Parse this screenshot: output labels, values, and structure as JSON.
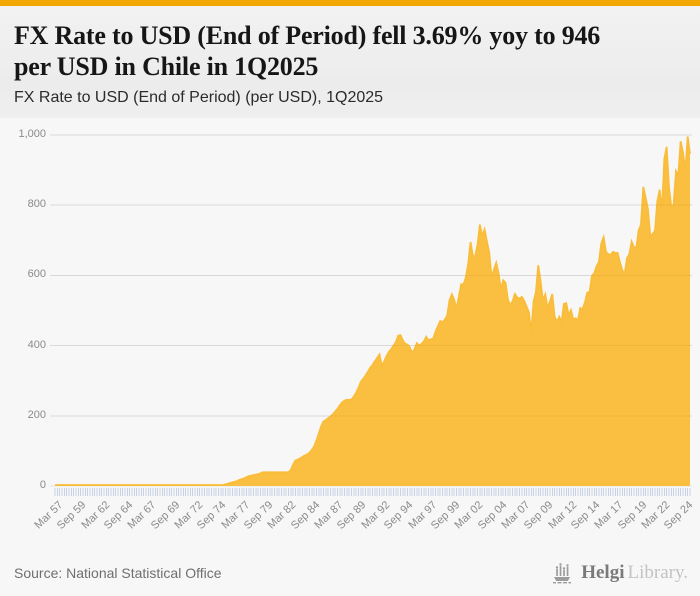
{
  "header": {
    "title_line1": "FX Rate to USD (End of Period) fell 3.69% yoy to 946",
    "title_line2": "per USD in Chile in 1Q2025",
    "subtitle": "FX Rate to USD (End of Period) (per USD), 1Q2025",
    "accent_color": "#F2A702"
  },
  "footer": {
    "source": "Source: National Statistical Office",
    "logo_icon": "bar-chart-ship-icon",
    "logo_primary": "Helgi",
    "logo_secondary": "Library."
  },
  "chart_data": {
    "type": "area",
    "title": "FX Rate to USD (End of Period) (per USD), 1Q2025",
    "frequency": "quarterly",
    "x_start": "1957Q1",
    "x_end": "2025Q1",
    "latest_value": 946,
    "latest_period": "1Q2025",
    "yoy_change_pct": -3.69,
    "ylim": [
      0,
      1000
    ],
    "yticks": [
      0,
      200,
      400,
      600,
      800,
      1000
    ],
    "ytick_labels": [
      "0",
      "200",
      "400",
      "600",
      "800",
      "1,000"
    ],
    "xtick_step_quarters": 10,
    "xtick_labels": [
      "Mar 57",
      "Sep 59",
      "Mar 62",
      "Sep 64",
      "Mar 67",
      "Sep 69",
      "Mar 72",
      "Sep 74",
      "Mar 77",
      "Sep 79",
      "Mar 82",
      "Sep 84",
      "Mar 87",
      "Sep 89",
      "Mar 92",
      "Sep 94",
      "Mar 97",
      "Sep 99",
      "Mar 02",
      "Sep 04",
      "Mar 07",
      "Sep 09",
      "Mar 12",
      "Sep 14",
      "Mar 17",
      "Sep 19",
      "Mar 22",
      "Sep 24"
    ],
    "grid": "horizontal",
    "legend": "none",
    "area_color": "#FABD3A",
    "grid_color": "#E4E4E4",
    "tick_color": "#C9D1E4",
    "label_color": "#8A8A8A",
    "values": [
      0,
      0,
      0,
      0,
      0,
      0,
      0,
      0,
      0,
      0,
      0,
      0,
      0,
      0,
      0,
      0,
      0,
      0,
      0,
      0,
      0,
      0,
      0,
      0,
      0,
      0,
      0,
      0,
      0,
      0,
      0,
      0,
      0,
      0,
      0,
      0,
      0,
      0,
      0,
      0,
      0,
      0,
      0,
      0,
      0,
      0,
      0,
      0,
      0,
      0,
      0,
      0,
      0,
      0,
      0,
      0,
      0,
      0,
      0,
      0,
      0,
      0,
      0,
      0,
      0,
      0,
      0,
      0.1,
      0.5,
      0.8,
      1.2,
      1.9,
      3.2,
      4.6,
      6.4,
      8.5,
      10.4,
      12,
      14,
      17.4,
      19.5,
      22,
      25,
      28,
      29.5,
      31,
      32.5,
      34,
      36,
      39,
      39,
      39,
      39,
      39,
      39,
      39,
      39,
      39,
      39,
      39,
      39,
      46,
      61,
      73,
      75,
      79,
      83,
      87,
      90,
      95,
      103,
      113,
      130,
      150,
      170,
      184,
      188,
      193,
      198,
      204,
      212,
      220,
      230,
      238,
      243,
      246,
      245,
      247,
      255,
      266,
      280,
      297,
      305,
      315,
      325,
      337,
      345,
      355,
      365,
      375,
      342,
      355,
      370,
      382,
      390,
      400,
      410,
      428,
      430,
      415,
      405,
      403,
      395,
      378,
      390,
      407,
      400,
      405,
      412,
      425,
      415,
      418,
      420,
      440,
      455,
      470,
      467,
      474,
      486,
      530,
      546,
      530,
      505,
      540,
      575,
      574,
      595,
      634,
      695,
      655,
      655,
      688,
      745,
      712,
      731,
      697,
      665,
      593,
      616,
      636,
      606,
      559,
      586,
      579,
      531,
      514,
      527,
      547,
      537,
      534,
      539,
      527,
      511,
      495,
      437,
      526,
      552,
      629,
      583,
      529,
      546,
      506,
      526,
      547,
      483,
      468,
      482,
      467,
      519,
      521,
      487,
      501,
      474,
      478,
      472,
      507,
      504,
      523,
      551,
      553,
      599,
      606,
      626,
      639,
      691,
      709,
      667,
      661,
      658,
      667,
      664,
      664,
      637,
      615,
      603,
      649,
      660,
      696,
      680,
      679,
      728,
      745,
      852,
      821,
      788,
      711,
      718,
      727,
      811,
      844,
      786,
      932,
      966,
      851,
      794,
      802,
      897,
      885,
      982,
      949,
      897,
      996,
      946
    ]
  }
}
